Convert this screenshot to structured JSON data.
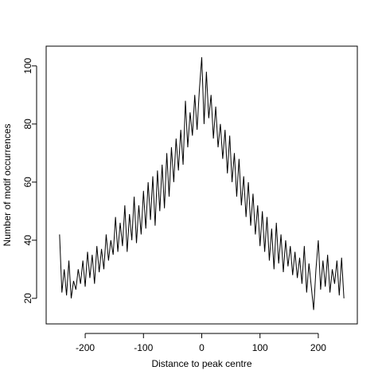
{
  "chart_data": {
    "type": "line",
    "x_label": "Distance to peak centre",
    "y_label": "Number of motif occurrences",
    "x": [
      -244,
      -240,
      -236,
      -232,
      -228,
      -224,
      -220,
      -216,
      -212,
      -208,
      -204,
      -200,
      -196,
      -192,
      -188,
      -184,
      -180,
      -176,
      -172,
      -168,
      -164,
      -160,
      -156,
      -152,
      -148,
      -144,
      -140,
      -136,
      -132,
      -128,
      -124,
      -120,
      -116,
      -112,
      -108,
      -104,
      -100,
      -96,
      -92,
      -88,
      -84,
      -80,
      -76,
      -72,
      -68,
      -64,
      -60,
      -56,
      -52,
      -48,
      -44,
      -40,
      -36,
      -32,
      -28,
      -24,
      -20,
      -16,
      -12,
      -8,
      -4,
      0,
      4,
      8,
      12,
      16,
      20,
      24,
      28,
      32,
      36,
      40,
      44,
      48,
      52,
      56,
      60,
      64,
      68,
      72,
      76,
      80,
      84,
      88,
      92,
      96,
      100,
      104,
      108,
      112,
      116,
      120,
      124,
      128,
      132,
      136,
      140,
      144,
      148,
      152,
      156,
      160,
      164,
      168,
      172,
      176,
      180,
      184,
      188,
      192,
      196,
      200,
      204,
      208,
      212,
      216,
      220,
      224,
      228,
      232,
      236,
      240,
      244
    ],
    "series": [
      {
        "color": "#000000",
        "values": [
          42,
          22,
          30,
          21,
          33,
          20,
          26,
          23,
          30,
          25,
          33,
          24,
          36,
          27,
          35,
          25,
          38,
          29,
          37,
          30,
          42,
          33,
          40,
          35,
          48,
          36,
          46,
          38,
          52,
          36,
          49,
          40,
          55,
          39,
          52,
          42,
          57,
          44,
          60,
          47,
          62,
          45,
          64,
          50,
          66,
          51,
          70,
          55,
          72,
          60,
          75,
          64,
          78,
          66,
          88,
          72,
          84,
          76,
          90,
          78,
          92,
          103,
          80,
          98,
          82,
          90,
          75,
          86,
          72,
          80,
          68,
          78,
          63,
          76,
          60,
          70,
          55,
          68,
          52,
          62,
          48,
          60,
          45,
          56,
          42,
          52,
          38,
          50,
          36,
          48,
          33,
          44,
          30,
          46,
          32,
          42,
          29,
          40,
          31,
          38,
          28,
          36,
          27,
          34,
          25,
          38,
          22,
          32,
          24,
          16,
          30,
          40,
          23,
          33,
          24,
          35,
          22,
          30,
          25,
          33,
          21,
          34,
          20
        ]
      }
    ],
    "xlim": [
      -267,
      267
    ],
    "ylim": [
      11.2,
      106.8
    ],
    "xticks": [
      -200,
      -100,
      0,
      100,
      200
    ],
    "yticks": [
      20,
      40,
      60,
      80,
      100
    ]
  }
}
